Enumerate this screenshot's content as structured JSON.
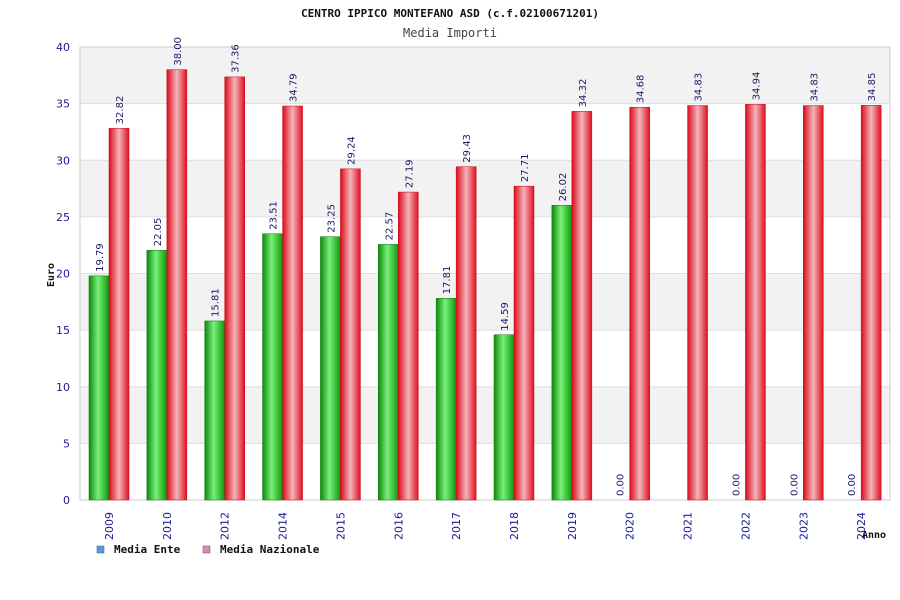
{
  "chart_data": {
    "type": "bar",
    "title": "CENTRO IPPICO MONTEFANO ASD (c.f.02100671201)",
    "subtitle": "Media Importi",
    "xlabel": "Anno",
    "ylabel": "Euro",
    "ylim": [
      0,
      40
    ],
    "yticks": [
      "0",
      "5",
      "10",
      "15",
      "20",
      "25",
      "30",
      "35",
      "40"
    ],
    "grid": true,
    "legend_position": "bottom-left",
    "categories": [
      "2009",
      "2010",
      "2012",
      "2014",
      "2015",
      "2016",
      "2017",
      "2018",
      "2019",
      "2020",
      "2021",
      "2022",
      "2023",
      "2024"
    ],
    "series": [
      {
        "name": "Media Ente",
        "color": "#22bb22",
        "legend_color": "#5599ee",
        "values": [
          19.79,
          22.05,
          15.81,
          23.51,
          23.25,
          22.57,
          17.81,
          14.59,
          26.02,
          0,
          null,
          0,
          0,
          0
        ],
        "labels": [
          "19.79",
          "22.05",
          "15.81",
          "23.51",
          "23.25",
          "22.57",
          "17.81",
          "14.59",
          "26.02",
          "0.00",
          "",
          "0.00",
          "0.00",
          "0.00"
        ]
      },
      {
        "name": "Media Nazionale",
        "color": "#ee2233",
        "legend_color": "#dd88bb",
        "values": [
          32.82,
          38.0,
          37.36,
          34.79,
          29.24,
          27.19,
          29.43,
          27.71,
          34.32,
          34.68,
          34.83,
          34.94,
          34.83,
          34.85
        ],
        "labels": [
          "32.82",
          "38.00",
          "37.36",
          "34.79",
          "29.24",
          "27.19",
          "29.43",
          "27.71",
          "34.32",
          "34.68",
          "34.83",
          "34.94",
          "34.83",
          "34.85"
        ]
      }
    ]
  }
}
